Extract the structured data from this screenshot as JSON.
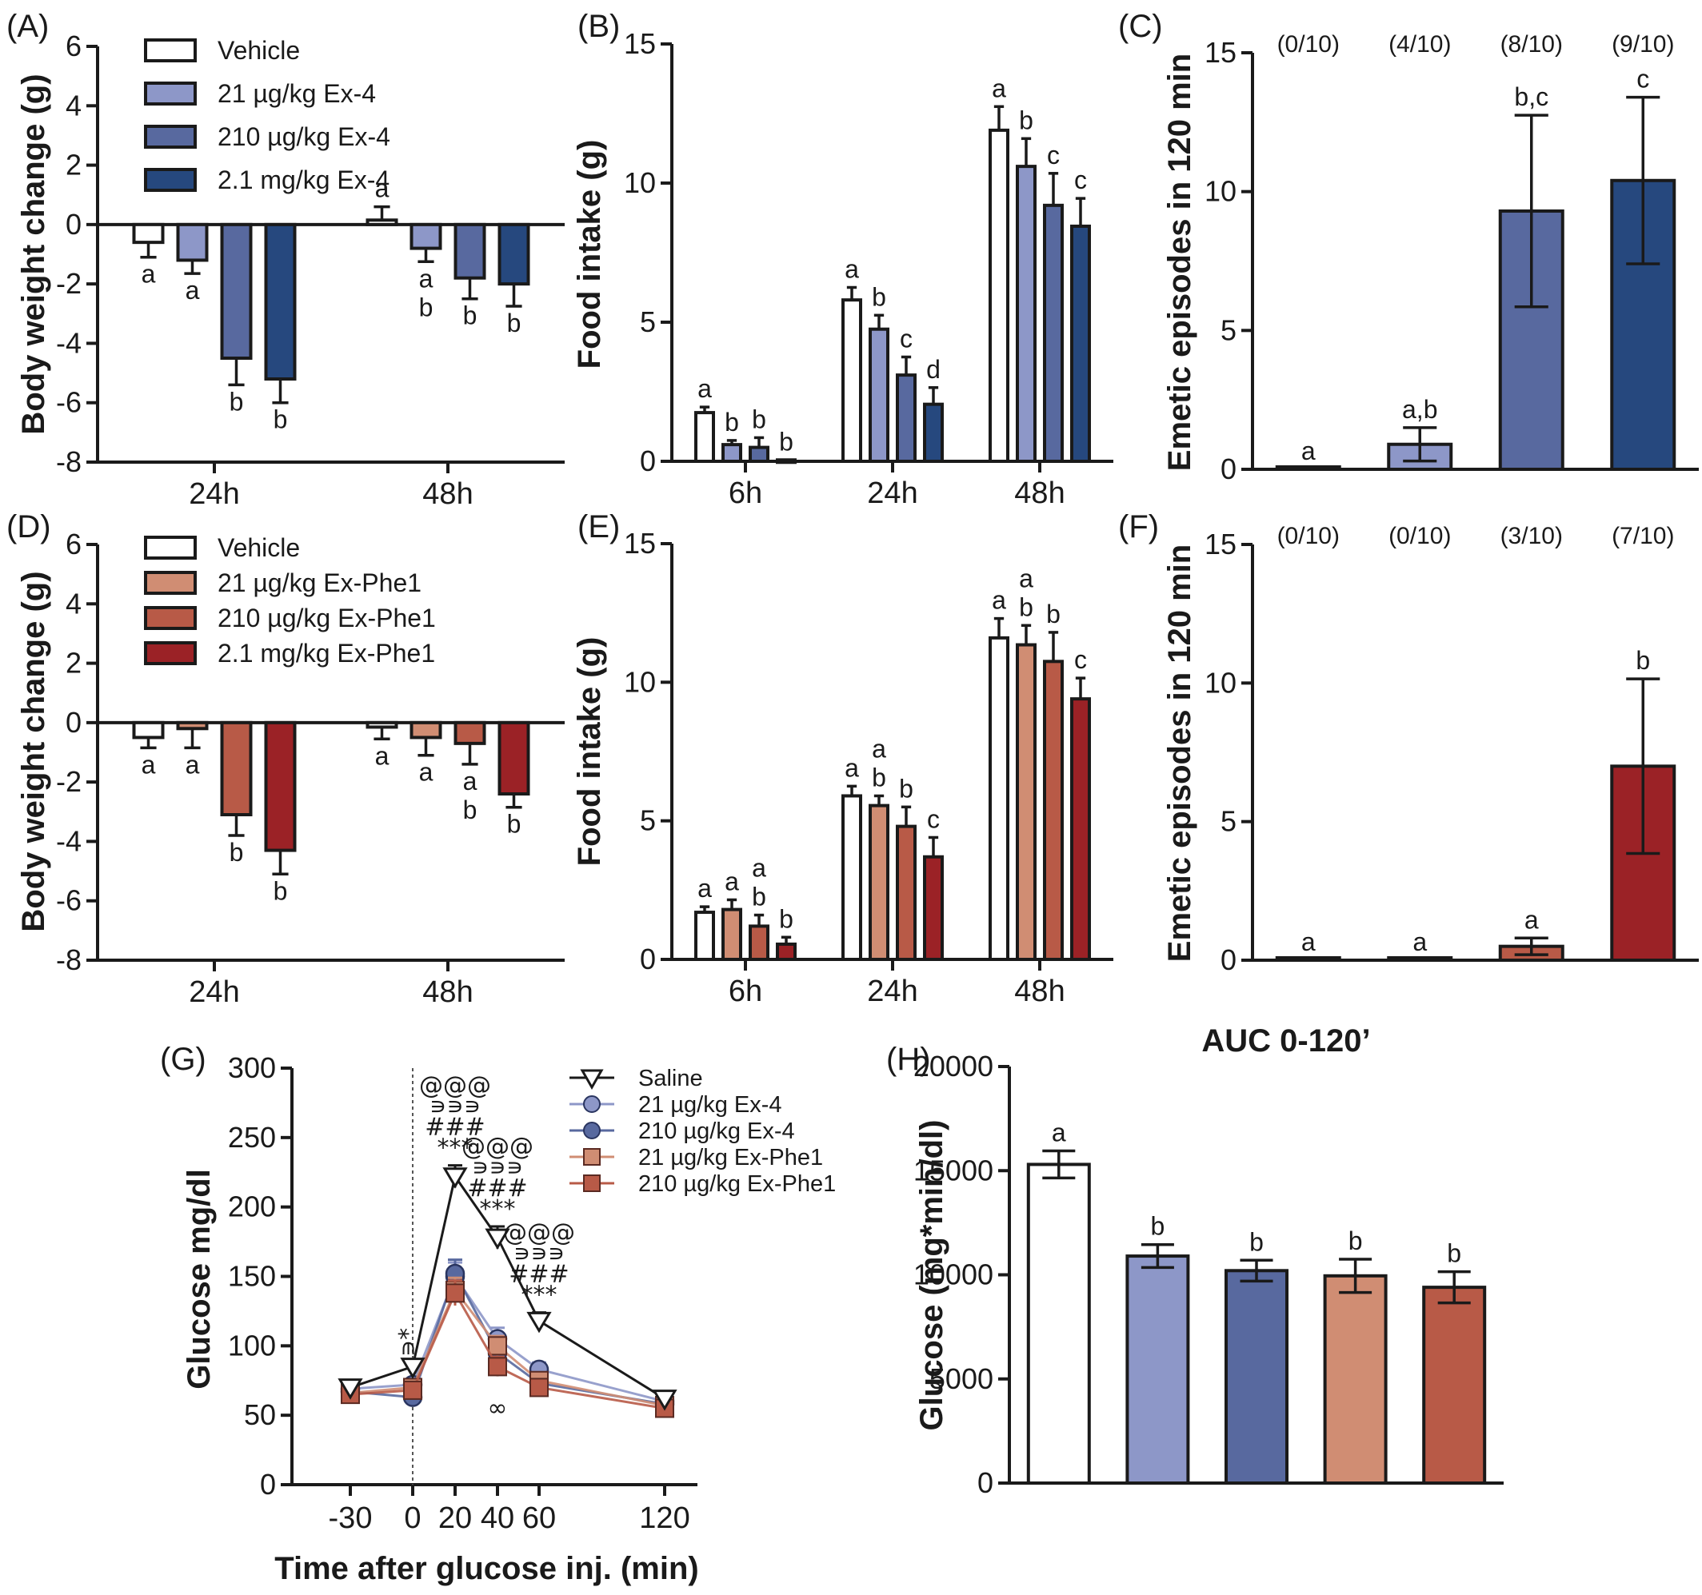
{
  "colors": {
    "vehicle": "#ffffff",
    "ex4_21": "#8d97c8",
    "ex4_210": "#58699f",
    "ex4_2100": "#26487e",
    "phe_21": "#d08d73",
    "phe_210": "#b85a47",
    "phe_2100": "#9b2226",
    "saline_line": "#1a1a1a"
  },
  "chart_data": [
    {
      "panel": "(A)",
      "type": "bar",
      "ylabel": "Body weight change (g)",
      "ylim": [
        -8,
        6
      ],
      "yticks": [
        -8,
        -6,
        -4,
        -2,
        0,
        2,
        4,
        6
      ],
      "categories": [
        "24h",
        "48h"
      ],
      "legend": {
        "position": "top-left"
      },
      "series": [
        {
          "name": "Vehicle",
          "color": "vehicle",
          "values": [
            -0.6,
            0.15
          ],
          "errors": [
            0.5,
            0.45
          ],
          "letters": [
            "a",
            "a"
          ]
        },
        {
          "name": "21 µg/kg Ex-4",
          "color": "ex4_21",
          "values": [
            -1.2,
            -0.8
          ],
          "errors": [
            0.45,
            0.45
          ],
          "letters": [
            "a",
            "a\nb"
          ]
        },
        {
          "name": "210 µg/kg Ex-4",
          "color": "ex4_210",
          "values": [
            -4.5,
            -1.8
          ],
          "errors": [
            0.9,
            0.7
          ],
          "letters": [
            "b",
            "b"
          ]
        },
        {
          "name": "2.1 mg/kg Ex-4",
          "color": "ex4_2100",
          "values": [
            -5.2,
            -2.0
          ],
          "errors": [
            0.8,
            0.75
          ],
          "letters": [
            "b",
            "b"
          ]
        }
      ]
    },
    {
      "panel": "(B)",
      "type": "bar",
      "ylabel": "Food intake (g)",
      "ylim": [
        0,
        15
      ],
      "yticks": [
        0,
        5,
        10,
        15
      ],
      "categories": [
        "6h",
        "24h",
        "48h"
      ],
      "series": [
        {
          "name": "Vehicle",
          "color": "vehicle",
          "values": [
            1.75,
            5.8,
            11.9
          ],
          "errors": [
            0.2,
            0.45,
            0.85
          ],
          "letters": [
            "a",
            "a",
            "a"
          ]
        },
        {
          "name": "21 µg/kg Ex-4",
          "color": "ex4_21",
          "values": [
            0.6,
            4.75,
            10.6
          ],
          "errors": [
            0.15,
            0.5,
            1.0
          ],
          "letters": [
            "b",
            "b",
            "b"
          ]
        },
        {
          "name": "210 µg/kg Ex-4",
          "color": "ex4_210",
          "values": [
            0.5,
            3.1,
            9.2
          ],
          "errors": [
            0.35,
            0.65,
            1.15
          ],
          "letters": [
            "b",
            "c",
            "c"
          ]
        },
        {
          "name": "2.1 mg/kg Ex-4",
          "color": "ex4_2100",
          "values": [
            0.05,
            2.05,
            8.45
          ],
          "errors": [
            0.0,
            0.6,
            1.0
          ],
          "letters": [
            "b",
            "d",
            "c"
          ]
        }
      ]
    },
    {
      "panel": "(C)",
      "type": "bar",
      "ylabel": "Emetic episodes in 120 min",
      "ylim": [
        0,
        15
      ],
      "yticks": [
        0,
        5,
        10,
        15
      ],
      "series": [
        {
          "name": "Vehicle",
          "color": "vehicle",
          "value": 0.0,
          "error": 0.0,
          "letter": "a",
          "ratio": "(0/10)"
        },
        {
          "name": "21 µg/kg Ex-4",
          "color": "ex4_21",
          "value": 0.9,
          "error": 0.6,
          "letter": "a,b",
          "ratio": "(4/10)"
        },
        {
          "name": "210 µg/kg Ex-4",
          "color": "ex4_210",
          "value": 9.3,
          "error": 3.45,
          "letter": "b,c",
          "ratio": "(8/10)"
        },
        {
          "name": "2.1 mg/kg Ex-4",
          "color": "ex4_2100",
          "value": 10.4,
          "error": 3.0,
          "letter": "c",
          "ratio": "(9/10)"
        }
      ]
    },
    {
      "panel": "(D)",
      "type": "bar",
      "ylabel": "Body weight change (g)",
      "ylim": [
        -8,
        6
      ],
      "yticks": [
        -8,
        -6,
        -4,
        -2,
        0,
        2,
        4,
        6
      ],
      "categories": [
        "24h",
        "48h"
      ],
      "legend": {
        "position": "top-left"
      },
      "series": [
        {
          "name": "Vehicle",
          "color": "vehicle",
          "values": [
            -0.5,
            -0.15
          ],
          "errors": [
            0.35,
            0.4
          ],
          "letters": [
            "a",
            "a"
          ]
        },
        {
          "name": "21 µg/kg Ex-Phe1",
          "color": "phe_21",
          "values": [
            -0.2,
            -0.5
          ],
          "errors": [
            0.65,
            0.6
          ],
          "letters": [
            "a",
            "a"
          ]
        },
        {
          "name": "210 µg/kg Ex-Phe1",
          "color": "phe_210",
          "values": [
            -3.1,
            -0.7
          ],
          "errors": [
            0.7,
            0.7
          ],
          "letters": [
            "b",
            "a\nb"
          ]
        },
        {
          "name": "2.1 mg/kg Ex-Phe1",
          "color": "phe_2100",
          "values": [
            -4.3,
            -2.4
          ],
          "errors": [
            0.8,
            0.45
          ],
          "letters": [
            "b",
            "b"
          ]
        }
      ]
    },
    {
      "panel": "(E)",
      "type": "bar",
      "ylabel": "Food intake (g)",
      "ylim": [
        0,
        15
      ],
      "yticks": [
        0,
        5,
        10,
        15
      ],
      "categories": [
        "6h",
        "24h",
        "48h"
      ],
      "series": [
        {
          "name": "Vehicle",
          "color": "vehicle",
          "values": [
            1.7,
            5.9,
            11.6
          ],
          "errors": [
            0.2,
            0.35,
            0.7
          ],
          "letters": [
            "a",
            "a",
            "a"
          ]
        },
        {
          "name": "21 µg/kg Ex-Phe1",
          "color": "phe_21",
          "values": [
            1.8,
            5.55,
            11.35
          ],
          "errors": [
            0.35,
            0.35,
            0.7
          ],
          "letters": [
            "a",
            "a\nb",
            "a\nb"
          ]
        },
        {
          "name": "210 µg/kg Ex-Phe1",
          "color": "phe_210",
          "values": [
            1.2,
            4.8,
            10.75
          ],
          "errors": [
            0.4,
            0.7,
            1.05
          ],
          "letters": [
            "a\nb",
            "b",
            "b"
          ]
        },
        {
          "name": "2.1 mg/kg Ex-Phe1",
          "color": "phe_2100",
          "values": [
            0.55,
            3.7,
            9.4
          ],
          "errors": [
            0.25,
            0.7,
            0.75
          ],
          "letters": [
            "b",
            "c",
            "c"
          ]
        }
      ]
    },
    {
      "panel": "(F)",
      "type": "bar",
      "ylabel": "Emetic episodes in 120 min",
      "ylim": [
        0,
        15
      ],
      "yticks": [
        0,
        5,
        10,
        15
      ],
      "series": [
        {
          "name": "Vehicle",
          "color": "vehicle",
          "value": 0.0,
          "error": 0.0,
          "letter": "a",
          "ratio": "(0/10)"
        },
        {
          "name": "21 µg/kg Ex-Phe1",
          "color": "phe_21",
          "value": 0.0,
          "error": 0.0,
          "letter": "a",
          "ratio": "(0/10)"
        },
        {
          "name": "210 µg/kg Ex-Phe1",
          "color": "phe_210",
          "value": 0.5,
          "error": 0.3,
          "letter": "a",
          "ratio": "(3/10)"
        },
        {
          "name": "2.1 mg/kg Ex-Phe1",
          "color": "phe_2100",
          "value": 7.0,
          "error": 3.15,
          "letter": "b",
          "ratio": "(7/10)"
        }
      ]
    },
    {
      "panel": "(G)",
      "type": "line",
      "xlabel": "Time after glucose inj. (min)",
      "ylabel": "Glucose mg/dl",
      "x": [
        -30,
        0,
        20,
        40,
        60,
        120
      ],
      "xticks": [
        -30,
        0,
        20,
        40,
        60,
        120
      ],
      "ylim": [
        0,
        300
      ],
      "yticks": [
        0,
        50,
        100,
        150,
        200,
        250,
        300
      ],
      "legend": {
        "position": "top-right"
      },
      "series": [
        {
          "name": "Saline",
          "color": "saline_line",
          "marker": "triangle-down",
          "values": [
            70,
            85,
            222,
            178,
            118,
            62
          ],
          "errors": [
            3,
            4,
            8,
            8,
            6,
            3
          ]
        },
        {
          "name": "21 µg/kg Ex-4",
          "color": "ex4_21",
          "marker": "circle",
          "values": [
            69,
            72,
            150,
            105,
            83,
            60
          ],
          "errors": [
            3,
            4,
            10,
            8,
            5,
            3
          ]
        },
        {
          "name": "210 µg/kg Ex-4",
          "color": "ex4_210",
          "marker": "circle",
          "values": [
            67,
            63,
            152,
            95,
            73,
            58
          ],
          "errors": [
            3,
            4,
            10,
            7,
            5,
            3
          ]
        },
        {
          "name": "21 µg/kg Ex-Phe1",
          "color": "phe_21",
          "marker": "square",
          "values": [
            66,
            70,
            140,
            100,
            75,
            57
          ],
          "errors": [
            3,
            4,
            9,
            7,
            5,
            3
          ]
        },
        {
          "name": "210 µg/kg Ex-Phe1",
          "color": "phe_210",
          "marker": "square",
          "values": [
            65,
            68,
            138,
            85,
            70,
            55
          ],
          "errors": [
            3,
            4,
            9,
            7,
            5,
            3
          ]
        }
      ],
      "annotations": [
        {
          "x": 0,
          "lines": [
            "*",
            "∍"
          ]
        },
        {
          "x": 20,
          "lines": [
            "@@@",
            "∍∍∍",
            "###",
            "***"
          ]
        },
        {
          "x": 40,
          "lines": [
            "@@@",
            "∍∍∍",
            "###",
            "***"
          ]
        },
        {
          "x": 60,
          "lines": [
            "@@@",
            "∍∍∍",
            "###",
            "***"
          ]
        },
        {
          "x": 40,
          "below": "∞"
        }
      ]
    },
    {
      "panel": "(H)",
      "type": "bar",
      "title": "AUC 0-120’",
      "ylabel": "Glucose (mg*min/dl)",
      "ylim": [
        0,
        20000
      ],
      "yticks": [
        0,
        5000,
        10000,
        15000,
        20000
      ],
      "series": [
        {
          "name": "Saline",
          "color": "vehicle",
          "value": 15300,
          "error": 650,
          "letter": "a"
        },
        {
          "name": "21 µg/kg Ex-4",
          "color": "ex4_21",
          "value": 10900,
          "error": 550,
          "letter": "b"
        },
        {
          "name": "210 µg/kg Ex-4",
          "color": "ex4_210",
          "value": 10200,
          "error": 500,
          "letter": "b"
        },
        {
          "name": "21 µg/kg Ex-Phe1",
          "color": "phe_21",
          "value": 9950,
          "error": 800,
          "letter": "b"
        },
        {
          "name": "210 µg/kg Ex-Phe1",
          "color": "phe_210",
          "value": 9400,
          "error": 750,
          "letter": "b"
        }
      ]
    }
  ]
}
